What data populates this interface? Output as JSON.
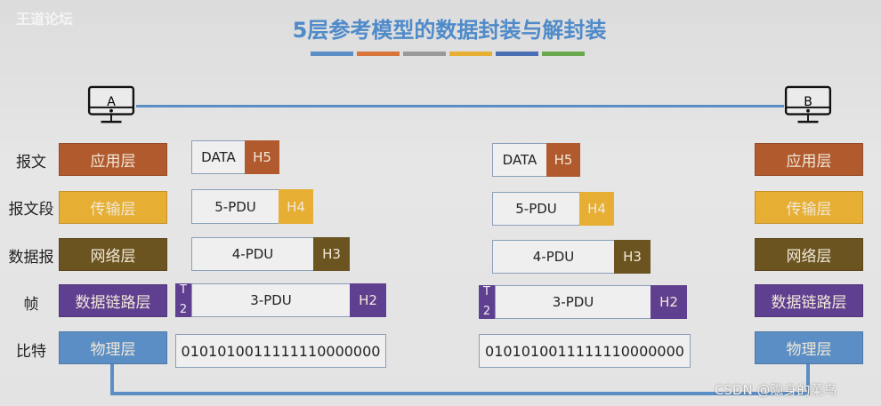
{
  "watermark_top": "王道论坛",
  "title": "5层参考模型的数据封装与解封装",
  "colors": {
    "app": "#b05a2e",
    "transport": "#e6ae32",
    "network": "#6b5420",
    "datalink": "#5f3f90",
    "physical": "#5b8ec4",
    "title": "#4f8ac9"
  },
  "title_bars": [
    "#5b8ec4",
    "#d9743a",
    "#9a9a9a",
    "#e6ae32",
    "#4a6fb5",
    "#6aa84f"
  ],
  "hosts": {
    "a": "A",
    "b": "B"
  },
  "row_labels": [
    "报文",
    "报文段",
    "数据报",
    "帧",
    "比特"
  ],
  "layers": [
    "应用层",
    "传输层",
    "网络层",
    "数据链路层",
    "物理层"
  ],
  "packets": {
    "data": "DATA",
    "h5": "H5",
    "pdu5": "5-PDU",
    "h4": "H4",
    "pdu4": "4-PDU",
    "h3": "H3",
    "pdu3": "3-PDU",
    "h2": "H2",
    "t2_top": "T",
    "t2_bottom": "2",
    "bits": "0101010011111110000000"
  },
  "watermark_bottom": "CSDN @隐身的菜鸟"
}
